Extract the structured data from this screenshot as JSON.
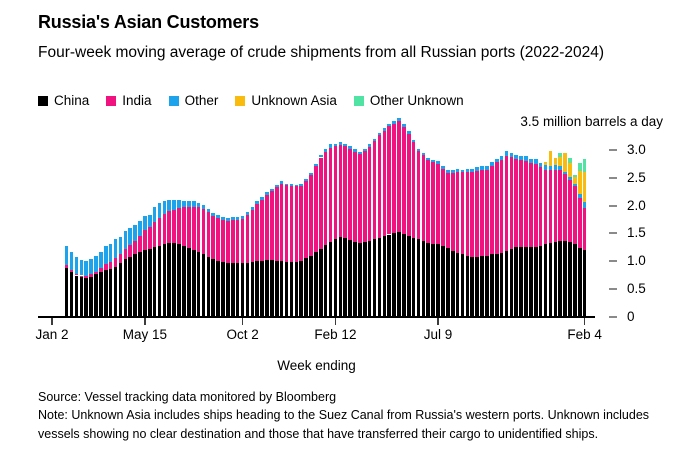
{
  "header": {
    "title": "Russia's Asian Customers",
    "subtitle": "Four-week moving average of crude shipments from all Russian ports (2022-2024)"
  },
  "footer": {
    "source": "Source: Vessel tracking data monitored by Bloomberg",
    "note": "Note: Unknown Asia includes ships heading to the Suez Canal from Russia's western ports. Unknown includes vessels showing no clear destination and those that have transferred their cargo to unidentified ships."
  },
  "chart_data": {
    "type": "bar",
    "stacked": true,
    "title": "Russia's Asian Customers",
    "subtitle": "Four-week moving average of crude shipments from all Russian ports (2022-2024)",
    "unit_label": "3.5 million barrels a day",
    "xlabel": "Week ending",
    "ylim": [
      0,
      3.5
    ],
    "grid": false,
    "legend_position": "top",
    "y_ticks": [
      {
        "label": "3.0",
        "value": 3.0
      },
      {
        "label": "2.5",
        "value": 2.5
      },
      {
        "label": "2.0",
        "value": 2.0
      },
      {
        "label": "1.5",
        "value": 1.5
      },
      {
        "label": "1.0",
        "value": 1.0
      },
      {
        "label": "0.5",
        "value": 0.5
      },
      {
        "label": "0",
        "value": 0.0
      }
    ],
    "x_ticks": [
      {
        "label": "Jan 2",
        "week": 0
      },
      {
        "label": "May 15",
        "week": 19
      },
      {
        "label": "Oct 2",
        "week": 39
      },
      {
        "label": "Feb 12",
        "week": 58
      },
      {
        "label": "Jul 9",
        "week": 79
      },
      {
        "label": "Feb 4",
        "week": 109
      }
    ],
    "start_week_index": 3,
    "weeks_total": 110,
    "series": [
      {
        "name": "China",
        "color": "#000000",
        "values": [
          0.88,
          0.8,
          0.74,
          0.71,
          0.7,
          0.72,
          0.76,
          0.8,
          0.84,
          0.86,
          0.9,
          0.97,
          1.03,
          1.08,
          1.12,
          1.16,
          1.2,
          1.22,
          1.25,
          1.28,
          1.3,
          1.32,
          1.33,
          1.3,
          1.27,
          1.23,
          1.2,
          1.17,
          1.13,
          1.08,
          1.04,
          1.01,
          0.99,
          0.97,
          0.96,
          0.96,
          0.96,
          0.97,
          0.98,
          1.0,
          1.01,
          1.02,
          1.02,
          1.01,
          1.0,
          0.98,
          0.98,
          0.99,
          1.01,
          1.05,
          1.1,
          1.16,
          1.22,
          1.29,
          1.35,
          1.4,
          1.43,
          1.41,
          1.38,
          1.35,
          1.33,
          1.34,
          1.36,
          1.39,
          1.42,
          1.45,
          1.48,
          1.5,
          1.52,
          1.49,
          1.45,
          1.42,
          1.39,
          1.36,
          1.33,
          1.31,
          1.3,
          1.27,
          1.24,
          1.19,
          1.15,
          1.12,
          1.1,
          1.08,
          1.08,
          1.09,
          1.1,
          1.12,
          1.13,
          1.15,
          1.18,
          1.22,
          1.25,
          1.26,
          1.26,
          1.25,
          1.26,
          1.28,
          1.3,
          1.32,
          1.34,
          1.36,
          1.37,
          1.34,
          1.3,
          1.24,
          1.2
        ]
      },
      {
        "name": "India",
        "color": "#EF127F",
        "values": [
          0.05,
          0.04,
          0.03,
          0.03,
          0.03,
          0.04,
          0.05,
          0.07,
          0.1,
          0.12,
          0.15,
          0.16,
          0.18,
          0.21,
          0.25,
          0.3,
          0.36,
          0.4,
          0.45,
          0.5,
          0.55,
          0.58,
          0.6,
          0.65,
          0.7,
          0.74,
          0.78,
          0.8,
          0.81,
          0.8,
          0.78,
          0.76,
          0.75,
          0.76,
          0.78,
          0.79,
          0.8,
          0.87,
          0.95,
          1.03,
          1.1,
          1.18,
          1.25,
          1.33,
          1.4,
          1.39,
          1.37,
          1.36,
          1.35,
          1.4,
          1.45,
          1.55,
          1.65,
          1.68,
          1.7,
          1.68,
          1.67,
          1.66,
          1.65,
          1.62,
          1.6,
          1.65,
          1.7,
          1.78,
          1.85,
          1.9,
          1.95,
          1.98,
          2.0,
          1.93,
          1.85,
          1.73,
          1.6,
          1.55,
          1.5,
          1.47,
          1.45,
          1.4,
          1.35,
          1.4,
          1.45,
          1.48,
          1.5,
          1.53,
          1.55,
          1.55,
          1.55,
          1.6,
          1.65,
          1.68,
          1.72,
          1.66,
          1.6,
          1.57,
          1.55,
          1.52,
          1.5,
          1.42,
          1.35,
          1.33,
          1.3,
          1.28,
          1.2,
          1.12,
          1.05,
          0.9,
          0.75
        ]
      },
      {
        "name": "Other",
        "color": "#1CA3EC",
        "values": [
          0.35,
          0.33,
          0.3,
          0.28,
          0.27,
          0.27,
          0.28,
          0.3,
          0.33,
          0.32,
          0.34,
          0.31,
          0.33,
          0.3,
          0.28,
          0.26,
          0.25,
          0.22,
          0.28,
          0.26,
          0.24,
          0.2,
          0.18,
          0.15,
          0.12,
          0.11,
          0.1,
          0.08,
          0.07,
          0.06,
          0.05,
          0.06,
          0.05,
          0.04,
          0.05,
          0.04,
          0.05,
          0.04,
          0.04,
          0.05,
          0.04,
          0.05,
          0.04,
          0.03,
          0.04,
          0.03,
          0.04,
          0.03,
          0.03,
          0.04,
          0.04,
          0.05,
          0.04,
          0.05,
          0.06,
          0.04,
          0.05,
          0.04,
          0.04,
          0.05,
          0.04,
          0.04,
          0.05,
          0.04,
          0.05,
          0.06,
          0.05,
          0.05,
          0.06,
          0.05,
          0.05,
          0.04,
          0.04,
          0.05,
          0.04,
          0.05,
          0.05,
          0.04,
          0.05,
          0.05,
          0.06,
          0.05,
          0.06,
          0.06,
          0.06,
          0.07,
          0.06,
          0.07,
          0.06,
          0.07,
          0.08,
          0.07,
          0.06,
          0.07,
          0.08,
          0.07,
          0.08,
          0.07,
          0.08,
          0.07,
          0.09,
          0.08,
          0.04,
          0.06,
          0.05,
          0.08,
          0.12
        ]
      },
      {
        "name": "Unknown Asia",
        "color": "#F9BB0D",
        "values": [
          0,
          0,
          0,
          0,
          0,
          0,
          0,
          0,
          0,
          0,
          0,
          0,
          0,
          0,
          0,
          0,
          0,
          0,
          0,
          0,
          0,
          0,
          0,
          0,
          0,
          0,
          0,
          0,
          0,
          0,
          0,
          0,
          0,
          0,
          0,
          0,
          0,
          0,
          0,
          0,
          0,
          0,
          0,
          0,
          0,
          0,
          0,
          0,
          0,
          0,
          0,
          0,
          0,
          0,
          0,
          0,
          0,
          0,
          0,
          0,
          0,
          0,
          0,
          0,
          0,
          0,
          0,
          0,
          0,
          0,
          0,
          0,
          0,
          0,
          0,
          0,
          0,
          0,
          0,
          0,
          0,
          0,
          0,
          0,
          0,
          0,
          0,
          0,
          0,
          0,
          0,
          0,
          0,
          0,
          0,
          0,
          0,
          0,
          0.05,
          0.27,
          0.13,
          0.16,
          0.34,
          0.25,
          0.12,
          0.4,
          0.54
        ]
      },
      {
        "name": "Other Unknown",
        "color": "#50E3A3",
        "values": [
          0,
          0,
          0,
          0,
          0,
          0,
          0,
          0,
          0,
          0,
          0,
          0,
          0,
          0,
          0,
          0,
          0,
          0,
          0,
          0,
          0,
          0,
          0,
          0,
          0,
          0,
          0,
          0,
          0,
          0,
          0,
          0,
          0,
          0,
          0,
          0,
          0,
          0,
          0,
          0,
          0,
          0,
          0,
          0,
          0,
          0,
          0,
          0,
          0,
          0,
          0,
          0,
          0,
          0,
          0,
          0,
          0,
          0,
          0,
          0,
          0,
          0,
          0,
          0,
          0,
          0,
          0,
          0,
          0,
          0,
          0,
          0,
          0,
          0,
          0,
          0,
          0,
          0,
          0,
          0,
          0,
          0,
          0,
          0,
          0,
          0,
          0,
          0,
          0,
          0,
          0,
          0,
          0,
          0,
          0,
          0,
          0,
          0,
          0,
          0,
          0,
          0.07,
          0,
          0.09,
          0.04,
          0.15,
          0.23
        ]
      }
    ]
  }
}
